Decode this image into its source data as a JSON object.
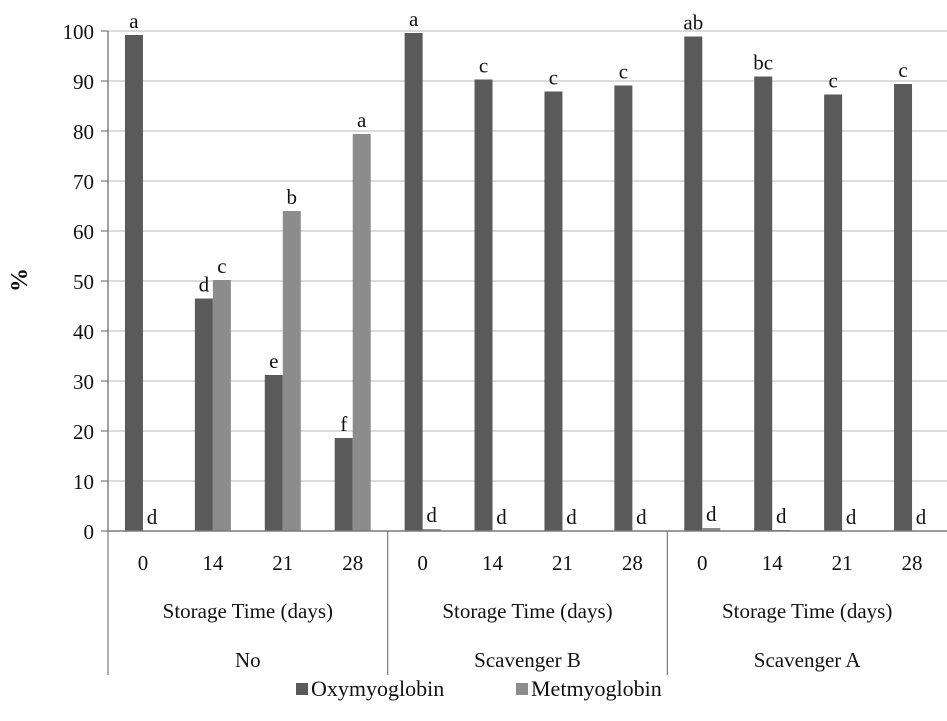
{
  "chart_data": {
    "type": "bar",
    "ylabel": "%",
    "ylim": [
      0,
      100
    ],
    "yticks": [
      0,
      10,
      20,
      30,
      40,
      50,
      60,
      70,
      80,
      90,
      100
    ],
    "grid": true,
    "legend": "bottom",
    "colors": {
      "Oxymyoglobin": "#5a5a5a",
      "Metmyoglobin": "#8c8c8c"
    },
    "groups": [
      {
        "name": "No",
        "sublabel": "Storage Time (days)",
        "categories": [
          "0",
          "14",
          "21",
          "28"
        ],
        "series": [
          {
            "name": "Oxymyoglobin",
            "values": [
              99.2,
              46.5,
              31.2,
              18.6
            ],
            "letters": [
              "a",
              "d",
              "e",
              "f"
            ]
          },
          {
            "name": "Metmyoglobin",
            "values": [
              0,
              50.2,
              64,
              79.4
            ],
            "letters": [
              "d",
              "c",
              "b",
              "a"
            ]
          }
        ]
      },
      {
        "name": "Scavenger B",
        "sublabel": "Storage Time (days)",
        "categories": [
          "0",
          "14",
          "21",
          "28"
        ],
        "series": [
          {
            "name": "Oxymyoglobin",
            "values": [
              99.6,
              90.3,
              87.9,
              89.1
            ],
            "letters": [
              "a",
              "c",
              "c",
              "c"
            ]
          },
          {
            "name": "Metmyoglobin",
            "values": [
              0.4,
              0,
              0,
              0
            ],
            "letters": [
              "d",
              "d",
              "d",
              "d"
            ]
          }
        ]
      },
      {
        "name": "Scavenger A",
        "sublabel": "Storage Time (days)",
        "categories": [
          "0",
          "14",
          "21",
          "28"
        ],
        "series": [
          {
            "name": "Oxymyoglobin",
            "values": [
              98.9,
              90.9,
              87.3,
              89.4
            ],
            "letters": [
              "ab",
              "bc",
              "c",
              "c"
            ]
          },
          {
            "name": "Metmyoglobin",
            "values": [
              0.6,
              0.2,
              0,
              0
            ],
            "letters": [
              "d",
              "d",
              "d",
              "d"
            ]
          }
        ]
      }
    ]
  }
}
